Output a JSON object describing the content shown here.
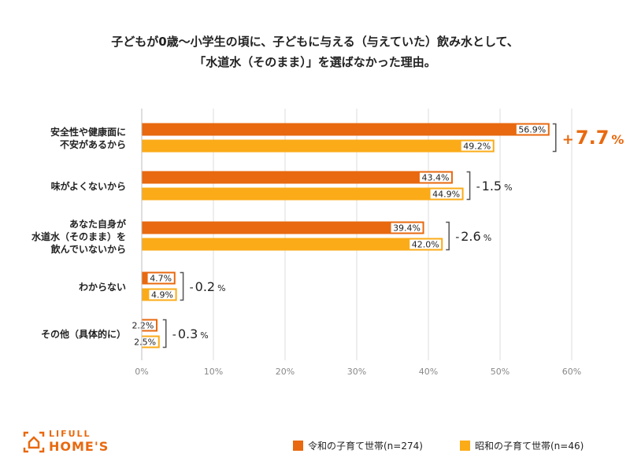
{
  "title": {
    "line1": "子どもが0歳〜小学生の頃に、子どもに与える（与えていた）飲み水として、",
    "line2": "「水道水（そのまま）」を選ばなかった理由。"
  },
  "chart_data": {
    "type": "bar",
    "orientation": "horizontal",
    "categories": [
      [
        "安全性や健康面に",
        "不安があるから"
      ],
      [
        "味がよくないから"
      ],
      [
        "あなた自身が",
        "水道水（そのまま）を",
        "飲んでいないから"
      ],
      [
        "わからない"
      ],
      [
        "その他（具体的に）"
      ]
    ],
    "series": [
      {
        "name": "令和の子育て世帯",
        "n_label": "(n=274)",
        "color": "#e8690f",
        "values": [
          56.9,
          43.4,
          39.4,
          4.7,
          2.2
        ],
        "labels": [
          "56.9%",
          "43.4%",
          "39.4%",
          "4.7%",
          "2.2%"
        ]
      },
      {
        "name": "昭和の子育て世帯",
        "n_label": "(n=46)",
        "color": "#fbab18",
        "values": [
          49.2,
          44.9,
          42.0,
          4.9,
          2.5
        ],
        "labels": [
          "49.2%",
          "44.9%",
          "42.0%",
          "4.9%",
          "2.5%"
        ]
      }
    ],
    "differences": [
      {
        "sign": "+",
        "value": "7.7",
        "unit": "%",
        "highlight": true
      },
      {
        "sign": "-",
        "value": "1.5",
        "unit": "%",
        "highlight": false
      },
      {
        "sign": "-",
        "value": "2.6",
        "unit": "%",
        "highlight": false
      },
      {
        "sign": "-",
        "value": "0.2",
        "unit": "%",
        "highlight": false
      },
      {
        "sign": "-",
        "value": "0.3",
        "unit": "%",
        "highlight": false
      }
    ],
    "xlim": [
      0,
      60
    ],
    "xticks": [
      0,
      10,
      20,
      30,
      40,
      50,
      60
    ],
    "xtick_labels": [
      "0%",
      "10%",
      "20%",
      "30%",
      "40%",
      "50%",
      "60%"
    ],
    "grid": true,
    "legend_position": "bottom-right"
  },
  "logo": {
    "top": "LIFULL",
    "bottom": "HOME'S"
  },
  "legend": {
    "item1": "令和の子育て世帯(n=274)",
    "item2": "昭和の子育て世帯(n=46)"
  },
  "colors": {
    "reiwa": "#e8690f",
    "showa": "#fbab18",
    "highlight": "#e8690f"
  }
}
